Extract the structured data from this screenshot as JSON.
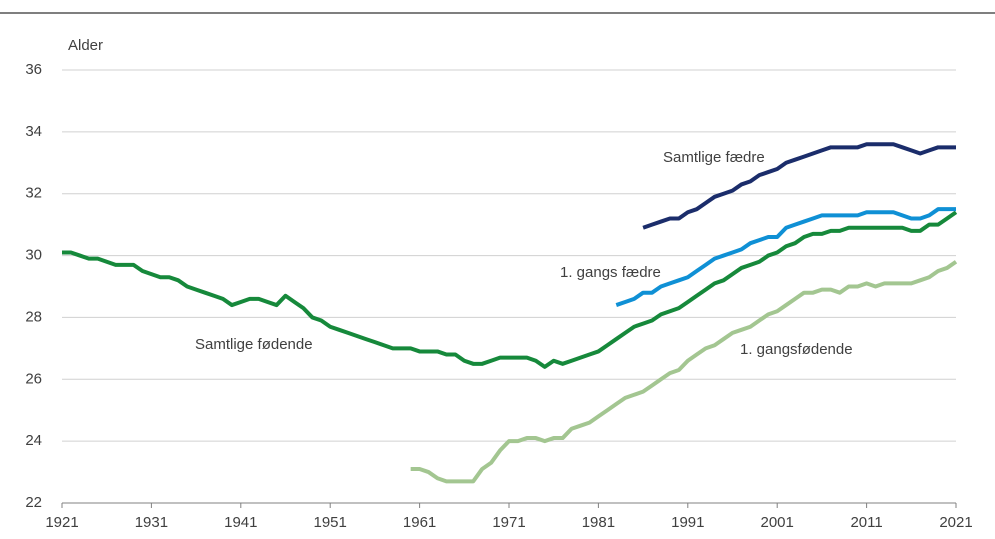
{
  "chart_data": {
    "type": "line",
    "y_label": "Alder",
    "xlim": [
      1921,
      2021
    ],
    "xticks": [
      1921,
      1931,
      1941,
      1951,
      1961,
      1971,
      1981,
      1991,
      2001,
      2011,
      2021
    ],
    "ylim": [
      22,
      36
    ],
    "yticks": [
      22,
      24,
      26,
      28,
      30,
      32,
      34,
      36
    ],
    "grid": true,
    "series": [
      {
        "name": "Samtlige fødende",
        "color": "#16893b",
        "x": [
          1921,
          1922,
          1923,
          1924,
          1925,
          1926,
          1927,
          1928,
          1929,
          1930,
          1931,
          1932,
          1933,
          1934,
          1935,
          1936,
          1937,
          1938,
          1939,
          1940,
          1941,
          1942,
          1943,
          1944,
          1945,
          1946,
          1947,
          1948,
          1949,
          1950,
          1951,
          1952,
          1953,
          1954,
          1955,
          1956,
          1957,
          1958,
          1959,
          1960,
          1961,
          1962,
          1963,
          1964,
          1965,
          1966,
          1967,
          1968,
          1969,
          1970,
          1971,
          1972,
          1973,
          1974,
          1975,
          1976,
          1977,
          1978,
          1979,
          1980,
          1981,
          1982,
          1983,
          1984,
          1985,
          1986,
          1987,
          1988,
          1989,
          1990,
          1991,
          1992,
          1993,
          1994,
          1995,
          1996,
          1997,
          1998,
          1999,
          2000,
          2001,
          2002,
          2003,
          2004,
          2005,
          2006,
          2007,
          2008,
          2009,
          2010,
          2011,
          2012,
          2013,
          2014,
          2015,
          2016,
          2017,
          2018,
          2019,
          2020,
          2021
        ],
        "values": [
          30.1,
          30.1,
          30.0,
          29.9,
          29.9,
          29.8,
          29.7,
          29.7,
          29.7,
          29.5,
          29.4,
          29.3,
          29.3,
          29.2,
          29.0,
          28.9,
          28.8,
          28.7,
          28.6,
          28.4,
          28.5,
          28.6,
          28.6,
          28.5,
          28.4,
          28.7,
          28.5,
          28.3,
          28.0,
          27.9,
          27.7,
          27.6,
          27.5,
          27.4,
          27.3,
          27.2,
          27.1,
          27.0,
          27.0,
          27.0,
          26.9,
          26.9,
          26.9,
          26.8,
          26.8,
          26.6,
          26.5,
          26.5,
          26.6,
          26.7,
          26.7,
          26.7,
          26.7,
          26.6,
          26.4,
          26.6,
          26.5,
          26.6,
          26.7,
          26.8,
          26.9,
          27.1,
          27.3,
          27.5,
          27.7,
          27.8,
          27.9,
          28.1,
          28.2,
          28.3,
          28.5,
          28.7,
          28.9,
          29.1,
          29.2,
          29.4,
          29.6,
          29.7,
          29.8,
          30.0,
          30.1,
          30.3,
          30.4,
          30.6,
          30.7,
          30.7,
          30.8,
          30.8,
          30.9,
          30.9,
          30.9,
          30.9,
          30.9,
          30.9,
          30.9,
          30.8,
          30.8,
          31.0,
          31.0,
          31.2,
          31.4
        ]
      },
      {
        "name": "1. gangsfødende",
        "color": "#a3c691",
        "x": [
          1960,
          1961,
          1962,
          1963,
          1964,
          1965,
          1966,
          1967,
          1968,
          1969,
          1970,
          1971,
          1972,
          1973,
          1974,
          1975,
          1976,
          1977,
          1978,
          1979,
          1980,
          1981,
          1982,
          1983,
          1984,
          1985,
          1986,
          1987,
          1988,
          1989,
          1990,
          1991,
          1992,
          1993,
          1994,
          1995,
          1996,
          1997,
          1998,
          1999,
          2000,
          2001,
          2002,
          2003,
          2004,
          2005,
          2006,
          2007,
          2008,
          2009,
          2010,
          2011,
          2012,
          2013,
          2014,
          2015,
          2016,
          2017,
          2018,
          2019,
          2020,
          2021
        ],
        "values": [
          23.1,
          23.1,
          23.0,
          22.8,
          22.7,
          22.7,
          22.7,
          22.7,
          23.1,
          23.3,
          23.7,
          24.0,
          24.0,
          24.1,
          24.1,
          24.0,
          24.1,
          24.1,
          24.4,
          24.5,
          24.6,
          24.8,
          25.0,
          25.2,
          25.4,
          25.5,
          25.6,
          25.8,
          26.0,
          26.2,
          26.3,
          26.6,
          26.8,
          27.0,
          27.1,
          27.3,
          27.5,
          27.6,
          27.7,
          27.9,
          28.1,
          28.2,
          28.4,
          28.6,
          28.8,
          28.8,
          28.9,
          28.9,
          28.8,
          29.0,
          29.0,
          29.1,
          29.0,
          29.1,
          29.1,
          29.1,
          29.1,
          29.2,
          29.3,
          29.5,
          29.6,
          29.8
        ]
      },
      {
        "name": "1. gangs fædre",
        "color": "#0f90d5",
        "x": [
          1983,
          1984,
          1985,
          1986,
          1987,
          1988,
          1989,
          1990,
          1991,
          1992,
          1993,
          1994,
          1995,
          1996,
          1997,
          1998,
          1999,
          2000,
          2001,
          2002,
          2003,
          2004,
          2005,
          2006,
          2007,
          2008,
          2009,
          2010,
          2011,
          2012,
          2013,
          2014,
          2015,
          2016,
          2017,
          2018,
          2019,
          2020,
          2021
        ],
        "values": [
          28.4,
          28.5,
          28.6,
          28.8,
          28.8,
          29.0,
          29.1,
          29.2,
          29.3,
          29.5,
          29.7,
          29.9,
          30.0,
          30.1,
          30.2,
          30.4,
          30.5,
          30.6,
          30.6,
          30.9,
          31.0,
          31.1,
          31.2,
          31.3,
          31.3,
          31.3,
          31.3,
          31.3,
          31.4,
          31.4,
          31.4,
          31.4,
          31.3,
          31.2,
          31.2,
          31.3,
          31.5,
          31.5,
          31.5
        ]
      },
      {
        "name": "Samtlige fædre",
        "color": "#1b2d6b",
        "x": [
          1986,
          1987,
          1988,
          1989,
          1990,
          1991,
          1992,
          1993,
          1994,
          1995,
          1996,
          1997,
          1998,
          1999,
          2000,
          2001,
          2002,
          2003,
          2004,
          2005,
          2006,
          2007,
          2008,
          2009,
          2010,
          2011,
          2012,
          2013,
          2014,
          2015,
          2016,
          2017,
          2018,
          2019,
          2020,
          2021
        ],
        "values": [
          30.9,
          31.0,
          31.1,
          31.2,
          31.2,
          31.4,
          31.5,
          31.7,
          31.9,
          32.0,
          32.1,
          32.3,
          32.4,
          32.6,
          32.7,
          32.8,
          33.0,
          33.1,
          33.2,
          33.3,
          33.4,
          33.5,
          33.5,
          33.5,
          33.5,
          33.6,
          33.6,
          33.6,
          33.6,
          33.5,
          33.4,
          33.3,
          33.4,
          33.5,
          33.5,
          33.5
        ]
      }
    ]
  }
}
